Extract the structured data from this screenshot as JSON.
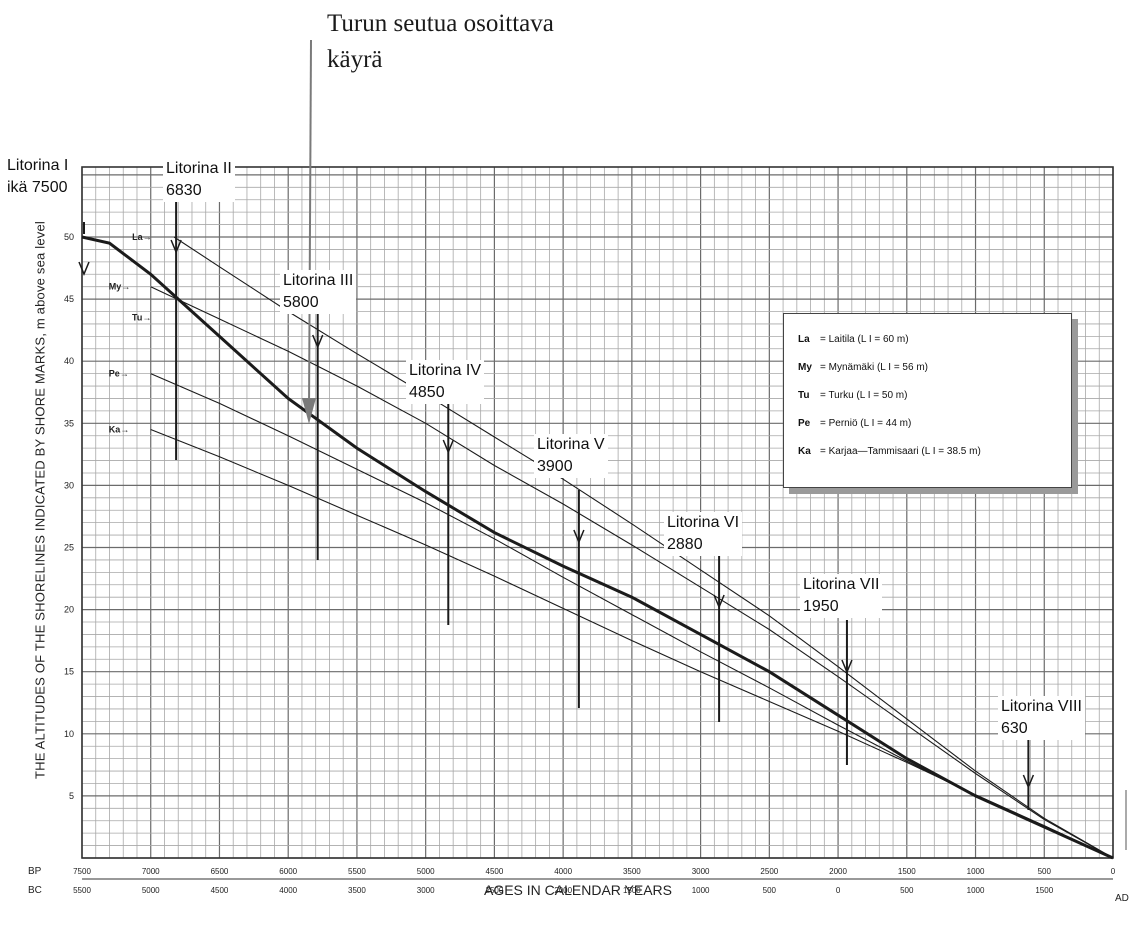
{
  "annotation": {
    "line1": "Turun seutua osoittava",
    "line2": "käyrä"
  },
  "axes": {
    "ylabel": "THE ALTITUDES OF THE SHORELINES INDICATED BY SHORE MARKS, m above sea level",
    "xlabel": "AGES IN CALENDAR YEARS",
    "bp_label": "BP",
    "bc_label": "BC",
    "ad_label": "AD"
  },
  "legend": {
    "entries": [
      {
        "code": "La",
        "text": "= Laitila (L I = 60 m)"
      },
      {
        "code": "My",
        "text": "= Mynämäki (L I = 56 m)"
      },
      {
        "code": "Tu",
        "text": "= Turku (L I = 50 m)"
      },
      {
        "code": "Pe",
        "text": "= Perniö (L I = 44 m)"
      },
      {
        "code": "Ka",
        "text": "= Karjaa—Tammisaari (L I = 38.5 m)"
      }
    ]
  },
  "markers": [
    {
      "name": "Litorina I",
      "age": "ikä 7500"
    },
    {
      "name": "Litorina II",
      "age": "6830"
    },
    {
      "name": "Litorina III",
      "age": "5800"
    },
    {
      "name": "Litorina IV",
      "age": "4850"
    },
    {
      "name": "Litorina V",
      "age": "3900"
    },
    {
      "name": "Litorina VI",
      "age": "2880"
    },
    {
      "name": "Litorina VII",
      "age": "1950"
    },
    {
      "name": "Litorina VIII",
      "age": "630"
    }
  ],
  "chart_data": {
    "type": "line",
    "xlim": [
      7500,
      0
    ],
    "ylim": [
      0,
      50
    ],
    "y_ticks": [
      "5",
      "10",
      "15",
      "20",
      "25",
      "30",
      "35",
      "40",
      "45",
      "50"
    ],
    "bp_ticks": [
      "7500",
      "7000",
      "6500",
      "6000",
      "5500",
      "5000",
      "4500",
      "4000",
      "3500",
      "3000",
      "2500",
      "2000",
      "1500",
      "1000",
      "500",
      "0"
    ],
    "bc_ad_ticks": [
      "5500",
      "5000",
      "4500",
      "4000",
      "3500",
      "3000",
      "2500",
      "2000",
      "1500",
      "1000",
      "500",
      "0",
      "500",
      "1000",
      "1500",
      ""
    ],
    "series": [
      {
        "name": "La",
        "x": [
          6830,
          6500,
          6000,
          5500,
          5000,
          4500,
          4000,
          3500,
          3000,
          2500,
          2000,
          1500,
          1000,
          500,
          0
        ],
        "values": [
          50,
          47.6,
          44.0,
          40.6,
          37.3,
          33.9,
          30.5,
          26.9,
          23.2,
          19.5,
          15.4,
          11.2,
          7.0,
          3.2,
          0
        ]
      },
      {
        "name": "My",
        "x": [
          7000,
          6500,
          6000,
          5500,
          5000,
          4500,
          4000,
          3500,
          3000,
          2500,
          2000,
          1500,
          1000,
          500,
          0
        ],
        "values": [
          46,
          43.4,
          40.8,
          38.0,
          35.0,
          31.6,
          28.5,
          25.2,
          21.8,
          18.4,
          14.6,
          10.7,
          6.8,
          3.1,
          0
        ]
      },
      {
        "name": "Tu",
        "x": [
          7500,
          7300,
          7000,
          6500,
          6000,
          5500,
          5000,
          4500,
          4000,
          3500,
          3000,
          2500,
          2000,
          1500,
          1000,
          500,
          0
        ],
        "values": [
          50,
          49.5,
          47.0,
          42.0,
          37.0,
          33.0,
          29.5,
          26.2,
          23.5,
          21.0,
          18.0,
          15.0,
          11.5,
          8.0,
          5.0,
          2.5,
          0
        ]
      },
      {
        "name": "Pe",
        "x": [
          7000,
          6500,
          6000,
          5500,
          5000,
          4500,
          4000,
          3500,
          3000,
          2500,
          2000,
          1500,
          1000,
          500,
          0
        ],
        "values": [
          39,
          36.6,
          34.0,
          31.3,
          28.6,
          25.7,
          22.6,
          19.6,
          16.6,
          13.7,
          10.7,
          7.8,
          5.0,
          2.6,
          0
        ]
      },
      {
        "name": "Ka",
        "x": [
          7000,
          6500,
          6000,
          5500,
          5000,
          4500,
          4000,
          3500,
          3000,
          2500,
          2000,
          1500,
          1000,
          500,
          0
        ],
        "values": [
          34.5,
          32.3,
          30.0,
          27.6,
          25.2,
          22.7,
          20.1,
          17.5,
          15.0,
          12.6,
          10.2,
          7.7,
          5.1,
          2.6,
          0
        ]
      }
    ]
  }
}
